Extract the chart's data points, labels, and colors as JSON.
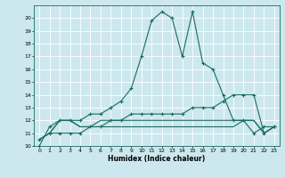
{
  "xlabel": "Humidex (Indice chaleur)",
  "background_color": "#cce8ee",
  "grid_color": "#ffffff",
  "line_color": "#1a6b60",
  "xlim": [
    -0.5,
    23.5
  ],
  "ylim": [
    10,
    21
  ],
  "yticks": [
    10,
    11,
    12,
    13,
    14,
    15,
    16,
    17,
    18,
    19,
    20
  ],
  "xticks": [
    0,
    1,
    2,
    3,
    4,
    5,
    6,
    7,
    8,
    9,
    10,
    11,
    12,
    13,
    14,
    15,
    16,
    17,
    18,
    19,
    20,
    21,
    22,
    23
  ],
  "series": [
    {
      "x": [
        0,
        1,
        2,
        3,
        4,
        5,
        6,
        7,
        8,
        9,
        10,
        11,
        12,
        13,
        14,
        15,
        16,
        17,
        18,
        19,
        20,
        21,
        22,
        23
      ],
      "y": [
        10,
        11.5,
        12,
        12,
        12,
        12.5,
        12.5,
        13,
        13.5,
        14.5,
        17,
        19.8,
        20.5,
        20,
        17,
        20.5,
        16.5,
        16,
        14,
        12,
        12,
        11,
        11.5,
        11.5
      ],
      "marker": true
    },
    {
      "x": [
        0,
        1,
        2,
        3,
        4,
        5,
        6,
        7,
        8,
        9,
        10,
        11,
        12,
        13,
        14,
        15,
        16,
        17,
        18,
        19,
        20,
        21,
        22,
        23
      ],
      "y": [
        10.5,
        11,
        11,
        11,
        11,
        11.5,
        11.5,
        12,
        12,
        12.5,
        12.5,
        12.5,
        12.5,
        12.5,
        12.5,
        13,
        13,
        13,
        13.5,
        14,
        14,
        14,
        11,
        11.5
      ],
      "marker": true
    },
    {
      "x": [
        0,
        1,
        2,
        3,
        4,
        5,
        6,
        7,
        8,
        9,
        10,
        11,
        12,
        13,
        14,
        15,
        16,
        17,
        18,
        19,
        20,
        21,
        22,
        23
      ],
      "y": [
        10.5,
        11,
        12,
        12,
        11.5,
        11.5,
        12,
        12,
        12,
        12,
        12,
        12,
        12,
        12,
        12,
        12,
        12,
        12,
        12,
        12,
        12,
        12,
        11,
        11.5
      ],
      "marker": false
    },
    {
      "x": [
        0,
        1,
        2,
        3,
        4,
        5,
        6,
        7,
        8,
        9,
        10,
        11,
        12,
        13,
        14,
        15,
        16,
        17,
        18,
        19,
        20,
        21,
        22,
        23
      ],
      "y": [
        10.5,
        11,
        12,
        12,
        11.5,
        11.5,
        11.5,
        11.5,
        11.5,
        11.5,
        11.5,
        11.5,
        11.5,
        11.5,
        11.5,
        11.5,
        11.5,
        11.5,
        11.5,
        11.5,
        12,
        12,
        11,
        11.5
      ],
      "marker": false
    }
  ]
}
